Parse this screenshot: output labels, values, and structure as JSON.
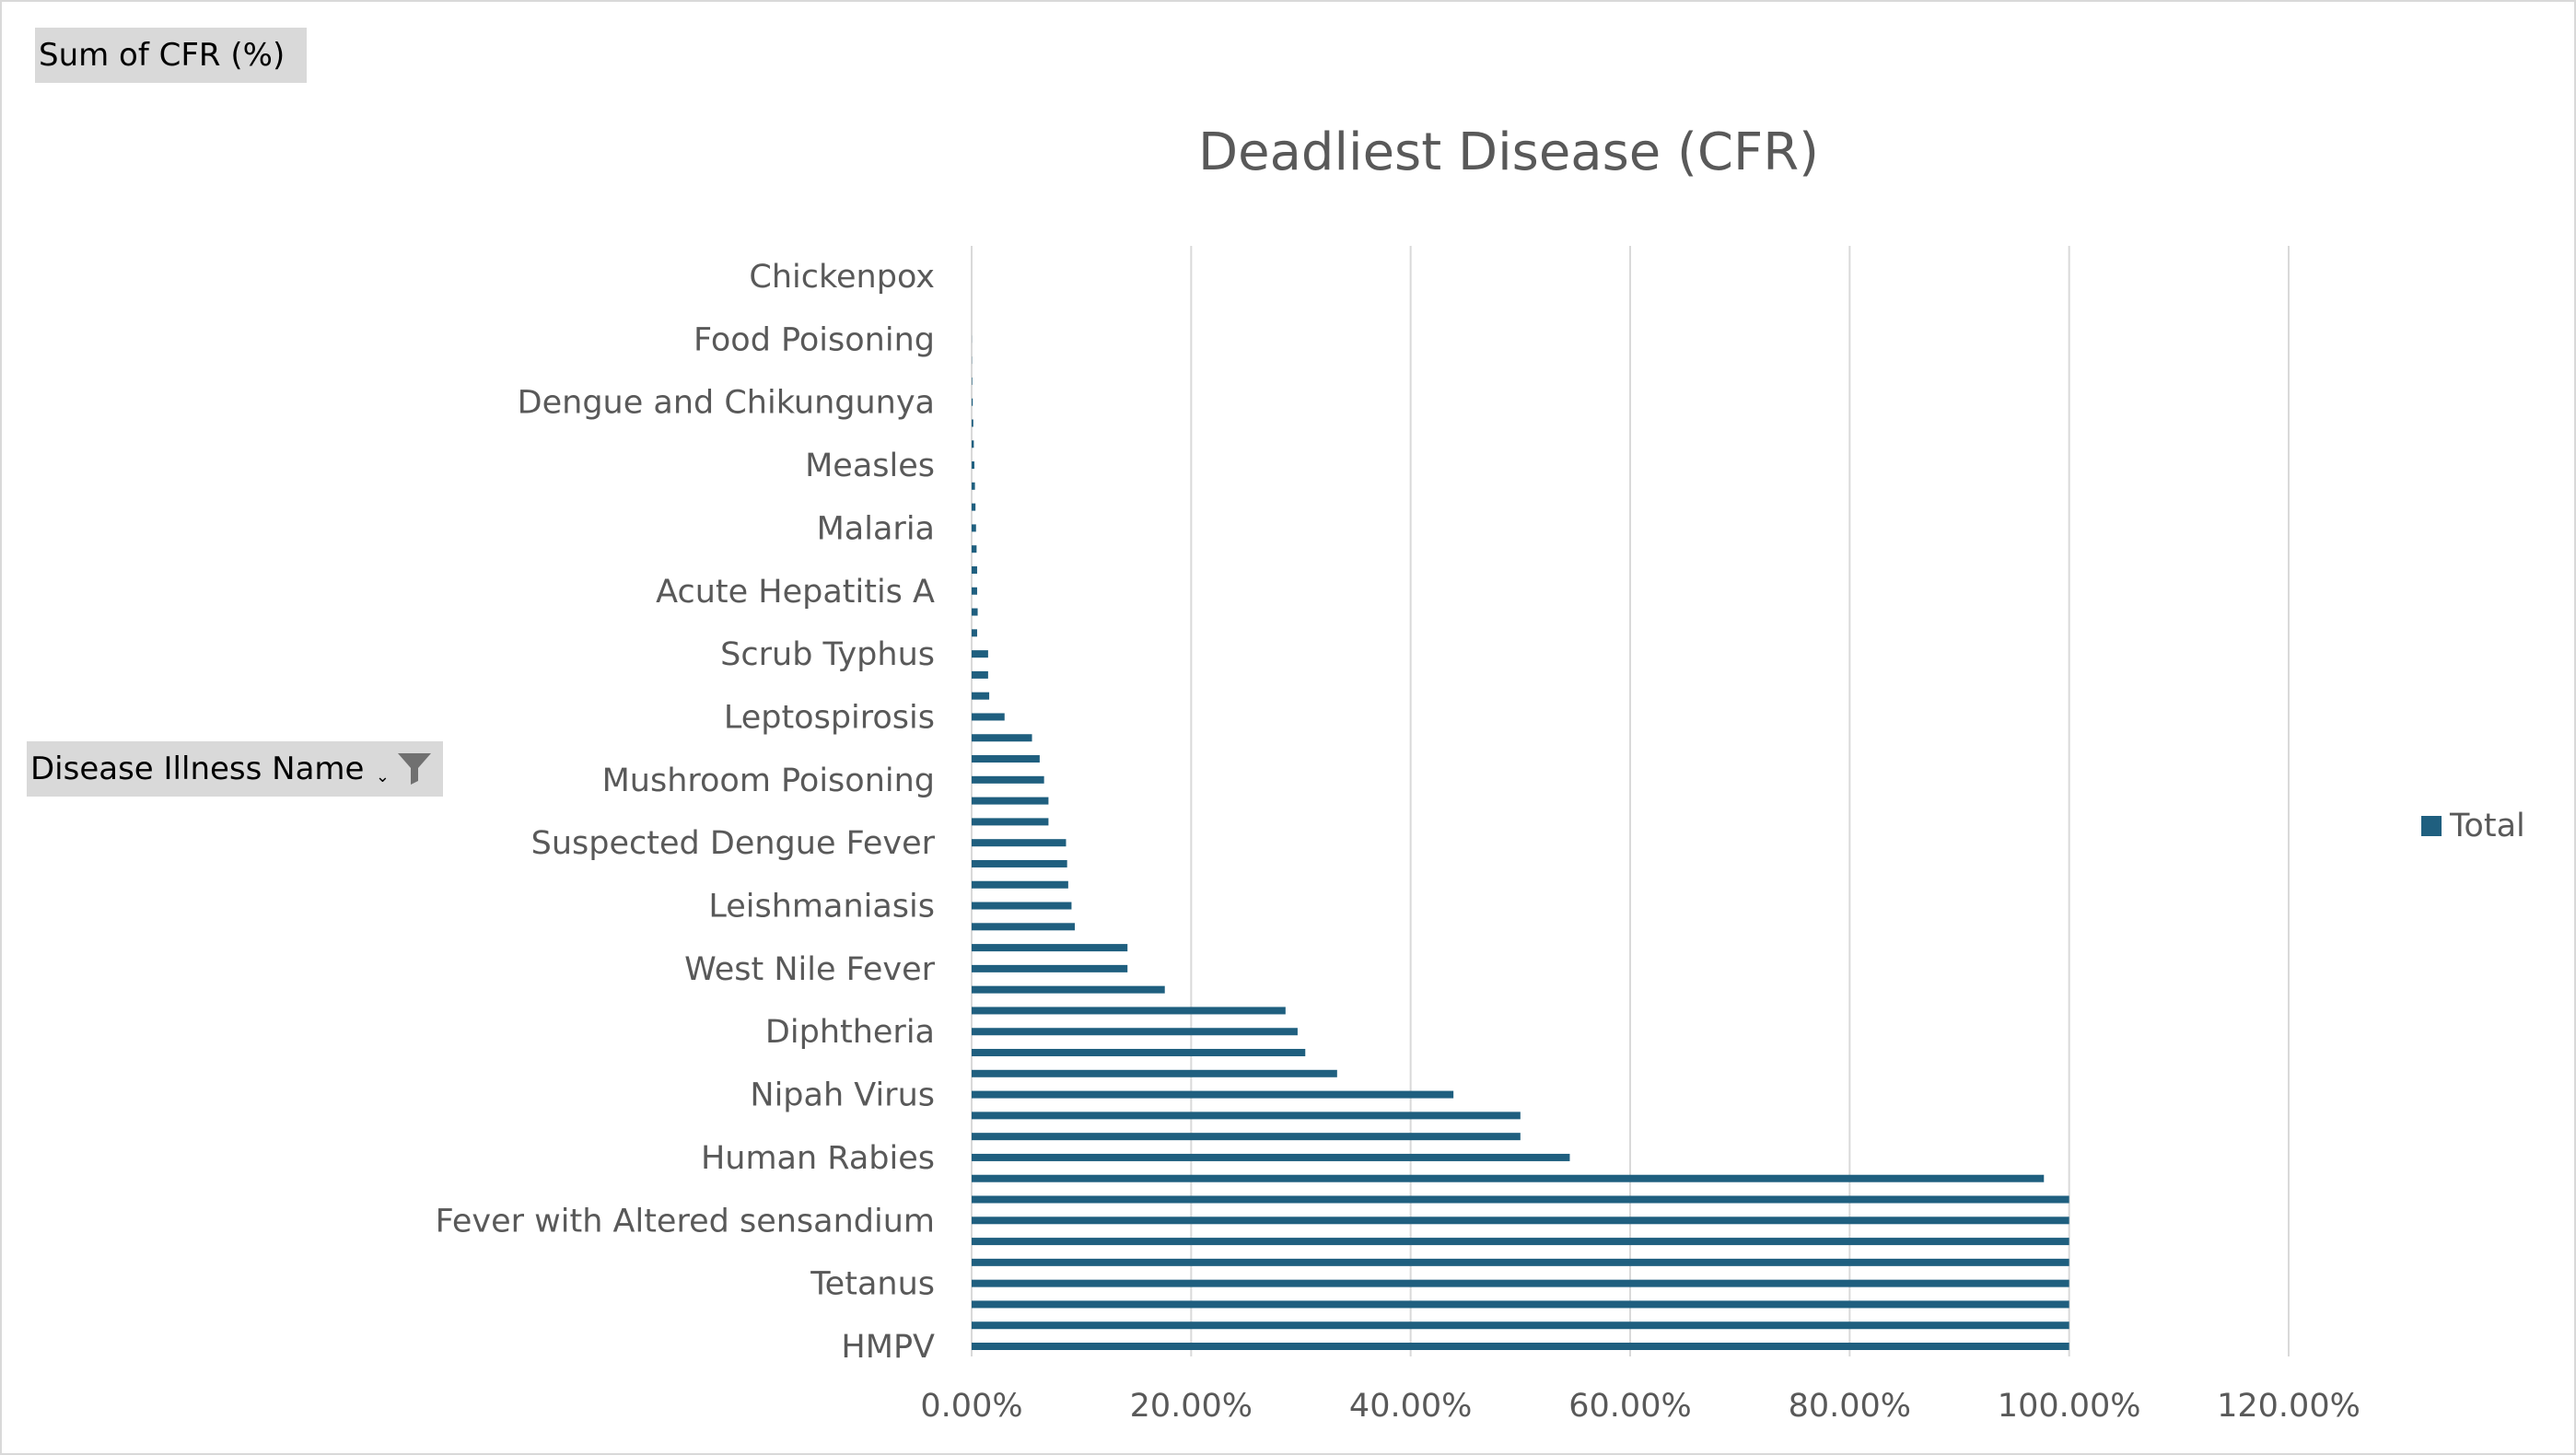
{
  "pivot": {
    "value_field": "Sum of CFR (%)",
    "row_field": "Disease Illness Name"
  },
  "icons": {
    "filter": "filter-icon"
  },
  "colors": {
    "bar": "#1f5f7f",
    "grid": "#d9d9d9",
    "text": "#595959"
  },
  "chart_data": {
    "type": "bar",
    "orientation": "horizontal",
    "title": "Deadliest Disease (CFR)",
    "xlim": [
      0,
      120
    ],
    "x_ticks": [
      "0.00%",
      "20.00%",
      "40.00%",
      "60.00%",
      "80.00%",
      "100.00%",
      "120.00%"
    ],
    "grid": "vertical",
    "legend": {
      "position": "right",
      "entries": [
        "Total"
      ]
    },
    "categories": [
      "Chickenpox",
      "",
      "",
      "Food Poisoning",
      "",
      "",
      "Dengue and Chikungunya",
      "",
      "",
      "Measles",
      "",
      "",
      "Malaria",
      "",
      "",
      "Acute Hepatitis A",
      "",
      "",
      "Scrub Typhus",
      "",
      "",
      "Leptospirosis",
      "",
      "",
      "Mushroom Poisoning",
      "",
      "",
      "Suspected Dengue Fever",
      "",
      "",
      "Leishmaniasis",
      "",
      "",
      "West Nile Fever",
      "",
      "",
      "Diphtheria",
      "",
      "",
      "Nipah Virus",
      "",
      "",
      "Human Rabies",
      "",
      "",
      "Fever with Altered sensandium",
      "",
      "",
      "Tetanus",
      "",
      "",
      "HMPV"
    ],
    "series": [
      {
        "name": "Total",
        "values": [
          0,
          0,
          0,
          0.01,
          0.02,
          0.05,
          0.1,
          0.15,
          0.2,
          0.25,
          0.3,
          0.35,
          0.4,
          0.45,
          0.5,
          0.5,
          0.55,
          0.5,
          1.5,
          1.5,
          1.6,
          3.0,
          5.5,
          6.2,
          6.6,
          7.0,
          7.0,
          8.6,
          8.7,
          8.8,
          9.1,
          9.4,
          14.2,
          14.2,
          17.6,
          28.6,
          29.7,
          30.4,
          33.3,
          43.9,
          50.0,
          50.0,
          54.5,
          97.7,
          100,
          100,
          100,
          100,
          100,
          100,
          100,
          100
        ]
      }
    ]
  }
}
